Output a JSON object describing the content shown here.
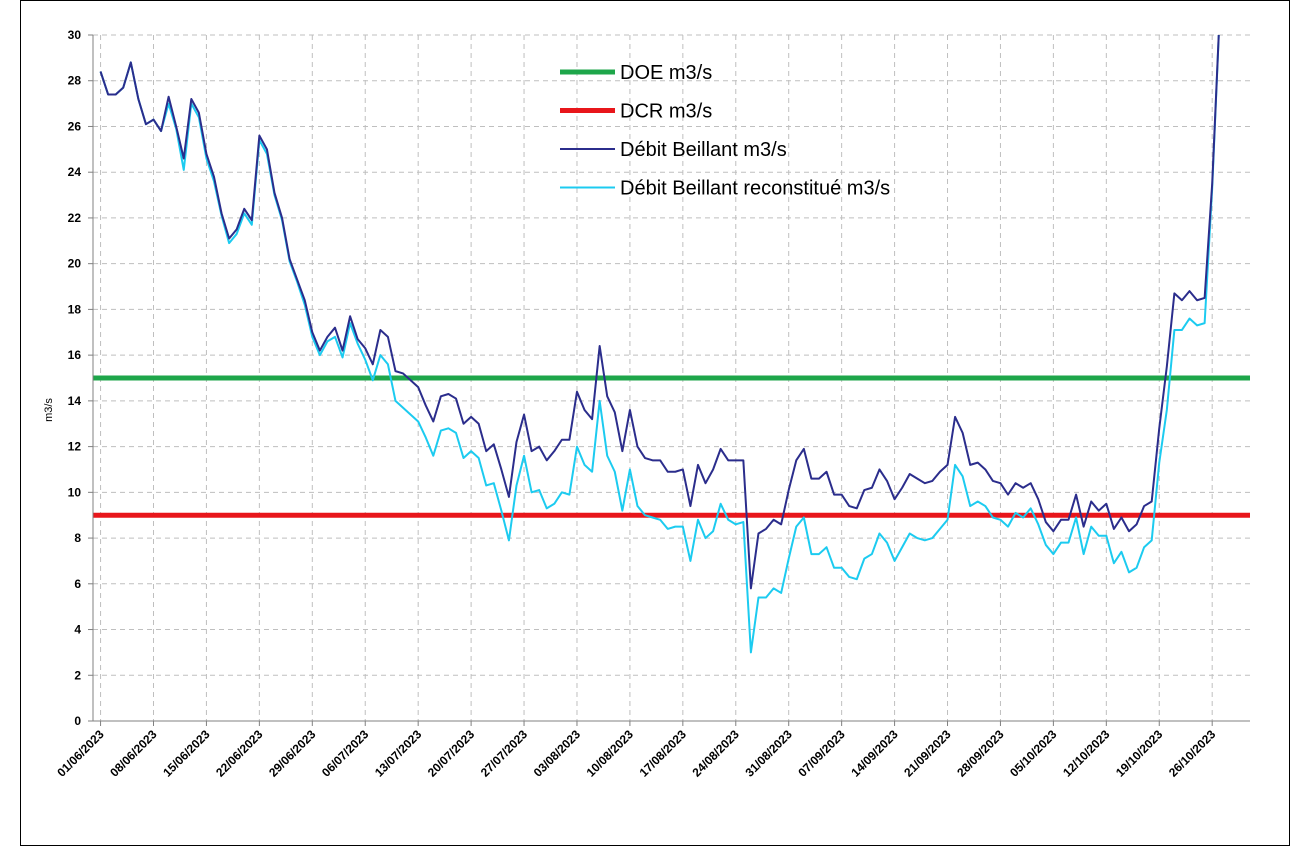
{
  "chart_data": {
    "type": "line",
    "y_label": "m3/s",
    "xlim": [
      "31/05/2023",
      "31/10/2023"
    ],
    "xticks": [
      "01/06/2023",
      "08/06/2023",
      "15/06/2023",
      "22/06/2023",
      "29/06/2023",
      "06/07/2023",
      "13/07/2023",
      "20/07/2023",
      "27/07/2023",
      "03/08/2023",
      "10/08/2023",
      "17/08/2023",
      "24/08/2023",
      "31/08/2023",
      "07/09/2023",
      "14/09/2023",
      "21/09/2023",
      "28/09/2023",
      "05/10/2023",
      "12/10/2023",
      "19/10/2023",
      "26/10/2023"
    ],
    "ylim": [
      0,
      30
    ],
    "yticks": [
      0,
      2,
      4,
      6,
      8,
      10,
      12,
      14,
      16,
      18,
      20,
      22,
      24,
      26,
      28,
      30
    ],
    "grid": true,
    "reference_lines": [
      {
        "name": "DOE m3/s",
        "color": "#1ea64a",
        "value": 15
      },
      {
        "name": "DCR m3/s",
        "color": "#e8161b",
        "value": 9
      }
    ],
    "x": [
      "01/06/2023",
      "02/06/2023",
      "03/06/2023",
      "04/06/2023",
      "05/06/2023",
      "06/06/2023",
      "07/06/2023",
      "08/06/2023",
      "09/06/2023",
      "10/06/2023",
      "11/06/2023",
      "12/06/2023",
      "13/06/2023",
      "14/06/2023",
      "15/06/2023",
      "16/06/2023",
      "17/06/2023",
      "18/06/2023",
      "19/06/2023",
      "20/06/2023",
      "21/06/2023",
      "22/06/2023",
      "23/06/2023",
      "24/06/2023",
      "25/06/2023",
      "26/06/2023",
      "27/06/2023",
      "28/06/2023",
      "29/06/2023",
      "30/06/2023",
      "01/07/2023",
      "02/07/2023",
      "03/07/2023",
      "04/07/2023",
      "05/07/2023",
      "06/07/2023",
      "07/07/2023",
      "08/07/2023",
      "09/07/2023",
      "10/07/2023",
      "11/07/2023",
      "12/07/2023",
      "13/07/2023",
      "14/07/2023",
      "15/07/2023",
      "16/07/2023",
      "17/07/2023",
      "18/07/2023",
      "19/07/2023",
      "20/07/2023",
      "21/07/2023",
      "22/07/2023",
      "23/07/2023",
      "24/07/2023",
      "25/07/2023",
      "26/07/2023",
      "27/07/2023",
      "28/07/2023",
      "29/07/2023",
      "30/07/2023",
      "31/07/2023",
      "01/08/2023",
      "02/08/2023",
      "03/08/2023",
      "04/08/2023",
      "05/08/2023",
      "06/08/2023",
      "07/08/2023",
      "08/08/2023",
      "09/08/2023",
      "10/08/2023",
      "11/08/2023",
      "12/08/2023",
      "13/08/2023",
      "14/08/2023",
      "15/08/2023",
      "16/08/2023",
      "17/08/2023",
      "18/08/2023",
      "19/08/2023",
      "20/08/2023",
      "21/08/2023",
      "22/08/2023",
      "23/08/2023",
      "24/08/2023",
      "25/08/2023",
      "26/08/2023",
      "27/08/2023",
      "28/08/2023",
      "29/08/2023",
      "30/08/2023",
      "31/08/2023",
      "01/09/2023",
      "02/09/2023",
      "03/09/2023",
      "04/09/2023",
      "05/09/2023",
      "06/09/2023",
      "07/09/2023",
      "08/09/2023",
      "09/09/2023",
      "10/09/2023",
      "11/09/2023",
      "12/09/2023",
      "13/09/2023",
      "14/09/2023",
      "15/09/2023",
      "16/09/2023",
      "17/09/2023",
      "18/09/2023",
      "19/09/2023",
      "20/09/2023",
      "21/09/2023",
      "22/09/2023",
      "23/09/2023",
      "24/09/2023",
      "25/09/2023",
      "26/09/2023",
      "27/09/2023",
      "28/09/2023",
      "29/09/2023",
      "30/09/2023",
      "01/10/2023",
      "02/10/2023",
      "03/10/2023",
      "04/10/2023",
      "05/10/2023",
      "06/10/2023",
      "07/10/2023",
      "08/10/2023",
      "09/10/2023",
      "10/10/2023",
      "11/10/2023",
      "12/10/2023",
      "13/10/2023",
      "14/10/2023",
      "15/10/2023",
      "16/10/2023",
      "17/10/2023",
      "18/10/2023",
      "19/10/2023",
      "20/10/2023",
      "21/10/2023",
      "22/10/2023",
      "23/10/2023",
      "24/10/2023",
      "25/10/2023",
      "26/10/2023",
      "27/10/2023"
    ],
    "series": [
      {
        "name": "Débit Beillant  m3/s",
        "color": "#2b2d8c",
        "values": [
          28.4,
          27.4,
          27.4,
          27.7,
          28.8,
          27.2,
          26.1,
          26.3,
          25.8,
          27.3,
          26.0,
          24.6,
          27.2,
          26.6,
          24.8,
          23.8,
          22.2,
          21.1,
          21.5,
          22.4,
          21.9,
          25.6,
          25.0,
          23.1,
          22.0,
          20.2,
          19.3,
          18.4,
          17.0,
          16.2,
          16.8,
          17.2,
          16.2,
          17.7,
          16.7,
          16.3,
          15.6,
          17.1,
          16.8,
          15.3,
          15.2,
          14.9,
          14.6,
          13.8,
          13.1,
          14.2,
          14.3,
          14.1,
          13.0,
          13.3,
          13.0,
          11.8,
          12.1,
          11.0,
          9.8,
          12.2,
          13.4,
          11.8,
          12.0,
          11.4,
          11.8,
          12.3,
          12.3,
          14.4,
          13.6,
          13.2,
          16.4,
          14.2,
          13.5,
          11.8,
          13.6,
          12.0,
          11.5,
          11.4,
          11.4,
          10.9,
          10.9,
          11.0,
          9.4,
          11.2,
          10.4,
          11.0,
          11.9,
          11.4,
          11.4,
          11.4,
          5.8,
          8.2,
          8.4,
          8.8,
          8.6,
          10.1,
          11.4,
          11.9,
          10.6,
          10.6,
          10.9,
          9.9,
          9.9,
          9.4,
          9.3,
          10.1,
          10.2,
          11.0,
          10.5,
          9.7,
          10.2,
          10.8,
          10.6,
          10.4,
          10.5,
          10.9,
          11.2,
          13.3,
          12.6,
          11.2,
          11.3,
          11.0,
          10.5,
          10.4,
          9.9,
          10.4,
          10.2,
          10.4,
          9.7,
          8.7,
          8.3,
          8.8,
          8.8,
          9.9,
          8.5,
          9.6,
          9.2,
          9.5,
          8.4,
          8.9,
          8.3,
          8.6,
          9.4,
          9.6,
          12.8,
          15.5,
          18.7,
          18.4,
          18.8,
          18.4,
          18.5,
          23.5,
          31
        ]
      },
      {
        "name": "Débit Beillant reconstitué m3/s",
        "color": "#1ccbf0",
        "values": [
          28.4,
          27.4,
          27.4,
          27.7,
          28.8,
          27.2,
          26.1,
          26.3,
          25.8,
          27.0,
          25.9,
          24.1,
          27.0,
          26.4,
          24.6,
          23.6,
          22.1,
          20.9,
          21.3,
          22.2,
          21.7,
          25.4,
          24.8,
          23.0,
          21.9,
          20.1,
          19.2,
          18.2,
          16.8,
          16.0,
          16.6,
          16.8,
          15.9,
          17.4,
          16.5,
          15.8,
          14.9,
          16.0,
          15.6,
          14.0,
          13.7,
          13.4,
          13.1,
          12.4,
          11.6,
          12.7,
          12.8,
          12.6,
          11.5,
          11.8,
          11.5,
          10.3,
          10.4,
          9.2,
          7.9,
          10.3,
          11.6,
          10.0,
          10.1,
          9.3,
          9.5,
          10.0,
          9.9,
          12.0,
          11.2,
          10.9,
          14.0,
          11.6,
          10.9,
          9.2,
          11.0,
          9.4,
          9.0,
          8.9,
          8.8,
          8.4,
          8.5,
          8.5,
          7.0,
          8.8,
          8.0,
          8.3,
          9.5,
          8.8,
          8.6,
          8.7,
          3.0,
          5.4,
          5.4,
          5.8,
          5.6,
          7.1,
          8.5,
          8.9,
          7.3,
          7.3,
          7.6,
          6.7,
          6.7,
          6.3,
          6.2,
          7.1,
          7.3,
          8.2,
          7.8,
          7.0,
          7.6,
          8.2,
          8.0,
          7.9,
          8.0,
          8.4,
          8.8,
          11.2,
          10.7,
          9.4,
          9.6,
          9.4,
          8.9,
          8.8,
          8.5,
          9.1,
          8.9,
          9.3,
          8.6,
          7.7,
          7.3,
          7.8,
          7.8,
          8.9,
          7.3,
          8.5,
          8.1,
          8.1,
          6.9,
          7.4,
          6.5,
          6.7,
          7.6,
          7.9,
          11.3,
          13.6,
          17.1,
          17.1,
          17.6,
          17.3,
          17.4,
          23.3,
          31
        ]
      }
    ]
  }
}
